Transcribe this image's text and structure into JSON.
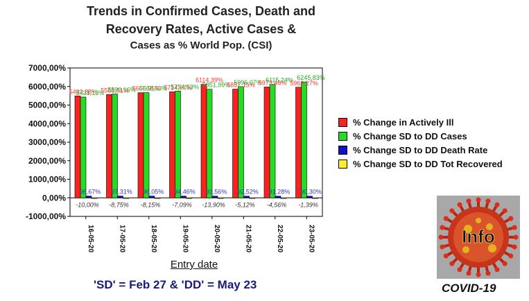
{
  "title_lines": [
    "Trends in Confirmed Cases, Death and",
    "Recovery Rates, Active Cases &",
    "Cases as % World Pop. (CSI)"
  ],
  "footnote": "'SD' = Feb 27 & 'DD' = May 23",
  "logo": {
    "text": "Info",
    "caption": "COVID-19",
    "icon": "coronavirus-icon"
  },
  "colors": {
    "red": "#ff2020",
    "green": "#22dd22",
    "blue": "#1010cc",
    "yellow": "#ffee22"
  },
  "chart_data": {
    "type": "bar",
    "xlabel": "Entry date",
    "ylim": [
      -1000,
      7000
    ],
    "yticks": [
      "7000,00%",
      "6000,00%",
      "5000,00%",
      "4000,00%",
      "3000,00%",
      "2000,00%",
      "1000,00%",
      "0,00%",
      "-1000,00%"
    ],
    "categories": [
      "16-05-20",
      "17-05-20",
      "18-05-20",
      "19-05-20",
      "20-05-20",
      "21-05-20",
      "22-05-20",
      "23-05-20"
    ],
    "series": [
      {
        "name": "% Change in Actively Ill",
        "values": [
          5492.88,
          5568.51,
          5665.95,
          5714.07,
          6114.39,
          5857.15,
          5973.48,
          5962.27
        ],
        "labels": [
          "5492,88%",
          "5568,51%",
          "5665,95%",
          "5714,07%",
          "6114,39%",
          "5857,15%",
          "5973,48%",
          "5962,27%"
        ]
      },
      {
        "name": "% Change SD to DD Cases",
        "values": [
          5431.13,
          5596.16,
          5668.53,
          5754.53,
          5851.99,
          5996.07,
          6115.24,
          6245.83
        ],
        "labels": [
          "5431,13%",
          "5596,16%",
          "5668,53%",
          "5754,53%",
          "5851,99%",
          "5996,07%",
          "6115,24%",
          "6245,83%"
        ]
      },
      {
        "name": "% Change SD to DD Death Rate",
        "values": [
          96.67,
          97.31,
          96.05,
          94.46,
          93.56,
          92.52,
          91.28,
          90.3
        ],
        "labels": [
          "96,67%",
          "97,31%",
          "96,05%",
          "94,46%",
          "93,56%",
          "92,52%",
          "91,28%",
          "90,30%"
        ]
      },
      {
        "name": "% Change SD to DD Tot Recovered",
        "values": [
          -10.0,
          -8.75,
          -8.15,
          -7.09,
          -13.9,
          -5.12,
          -4.56,
          -1.39
        ],
        "labels": [
          "-10,00%",
          "-8,75%",
          "-8,15%",
          "-7,09%",
          "-13,90%",
          "-5,12%",
          "-4,56%",
          "-1,39%"
        ]
      }
    ]
  }
}
